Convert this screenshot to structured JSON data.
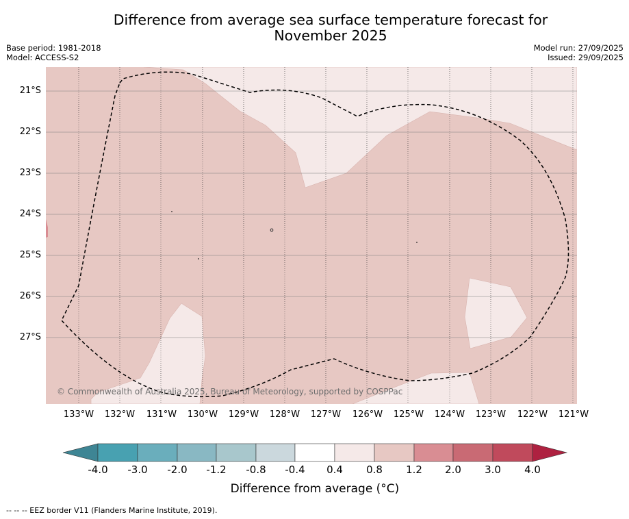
{
  "header": {
    "title_line1": "Difference from average sea surface temperature forecast for",
    "title_line2": "November 2025",
    "base_period": "Base period: 1981-2018",
    "model": "Model: ACCESS-S2",
    "model_run": "Model run: 27/09/2025",
    "issued": "Issued: 29/09/2025"
  },
  "map": {
    "latitude_labels": [
      "21°S",
      "22°S",
      "23°S",
      "24°S",
      "25°S",
      "26°S",
      "27°S"
    ],
    "longitude_labels": [
      "133°W",
      "132°W",
      "131°W",
      "130°W",
      "129°W",
      "128°W",
      "127°W",
      "126°W",
      "125°W",
      "124°W",
      "123°W",
      "122°W",
      "121°W"
    ],
    "copyright": "© Commonwealth of Australia 2025, Bureau of Meteorology, supported by COSPPac",
    "fill_colors": {
      "dominant_0.8_to_1.2": "#e7c8c3",
      "band_0.4_to_0.8": "#f5e9e8",
      "band_1.2_to_2.0": "#d98d93"
    }
  },
  "colorbar": {
    "title": "Difference from average (°C)",
    "tick_labels": [
      "-4.0",
      "-3.0",
      "-2.0",
      "-1.2",
      "-0.8",
      "-0.4",
      "0.4",
      "0.8",
      "1.2",
      "2.0",
      "3.0",
      "4.0"
    ],
    "colors": [
      "#3e8594",
      "#48a1b1",
      "#6aaebc",
      "#89b8c3",
      "#a8c7cc",
      "#cbd8dd",
      "#ffffff",
      "#f5e9e8",
      "#e7c8c3",
      "#d98d93",
      "#c96a74",
      "#c04a5c",
      "#ae2140"
    ]
  },
  "footnote": "--  --  -- EEZ border V11 (Flanders Marine Institute, 2019)."
}
